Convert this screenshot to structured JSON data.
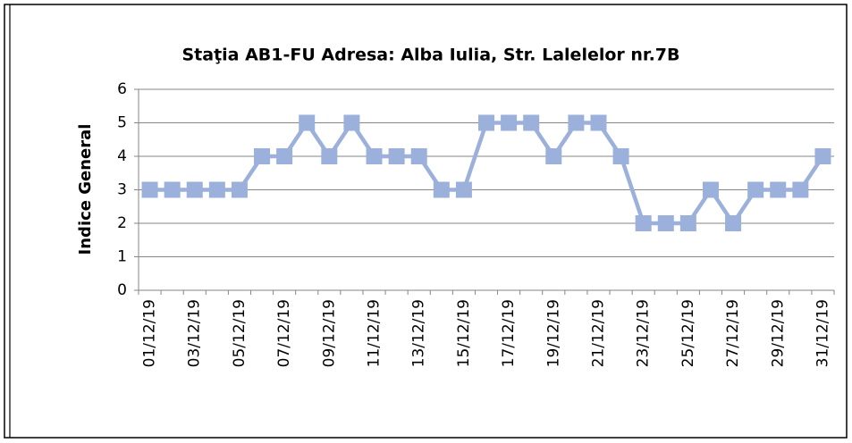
{
  "chart_data": {
    "type": "line",
    "title": "Staţia AB1-FU  Adresa: Alba Iulia, Str. Lalelelor nr.7B",
    "y_label": "Indice General",
    "categories": [
      "01/12/19",
      null,
      "03/12/19",
      null,
      "05/12/19",
      null,
      "07/12/19",
      null,
      "09/12/19",
      null,
      "11/12/19",
      null,
      "13/12/19",
      null,
      "15/12/19",
      null,
      "17/12/19",
      null,
      "19/12/19",
      null,
      "21/12/19",
      null,
      "23/12/19",
      null,
      "25/12/19",
      null,
      "27/12/19",
      null,
      "29/12/19",
      null,
      "31/12/19"
    ],
    "series": [
      {
        "color": "#9bb0db",
        "values": [
          3,
          3,
          3,
          3,
          3,
          4,
          4,
          5,
          4,
          5,
          4,
          4,
          4,
          3,
          3,
          5,
          5,
          5,
          4,
          5,
          5,
          4,
          2,
          2,
          2,
          3,
          2,
          3,
          3,
          3,
          4
        ]
      }
    ],
    "ylim": [
      0,
      6
    ],
    "yticks": [
      0,
      1,
      2,
      3,
      4,
      5,
      6
    ],
    "grid": true,
    "marker": "square"
  }
}
